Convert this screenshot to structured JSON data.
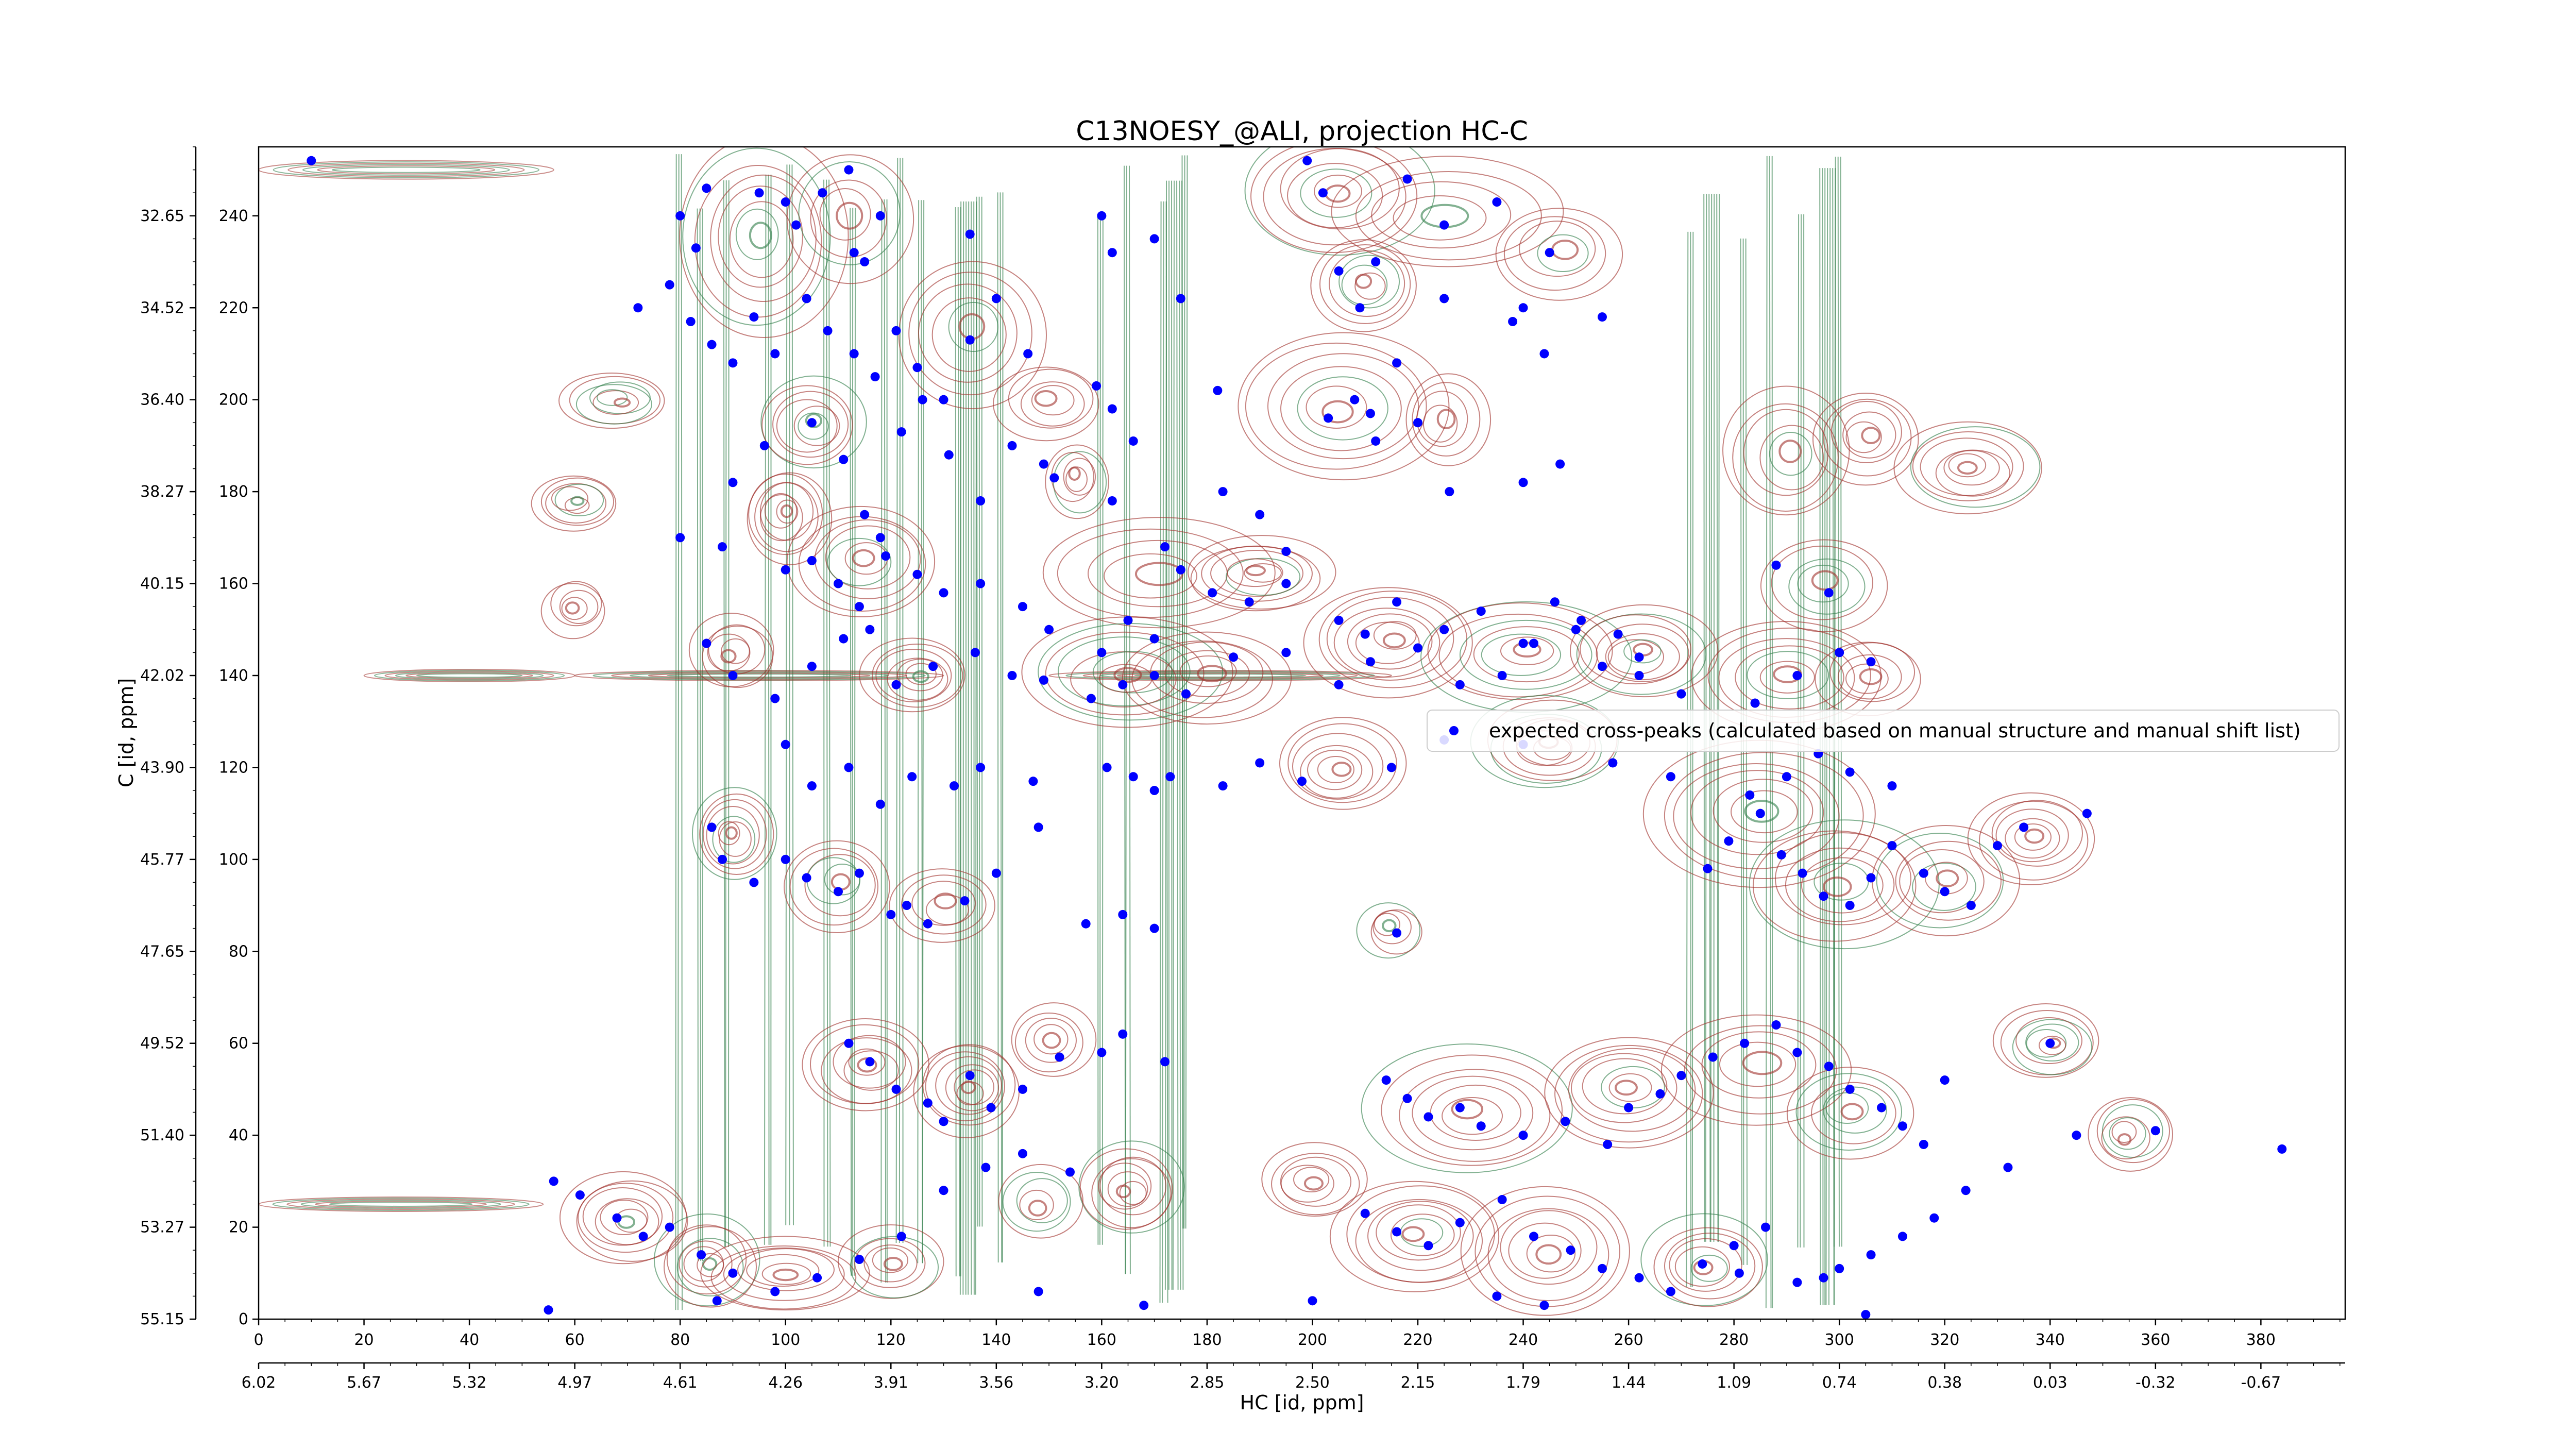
{
  "chart_data": {
    "type": "scatter",
    "title": "C13NOESY_@ALI, projection HC-C",
    "xlabel": "HC [id, ppm]",
    "ylabel": "C [id, ppm]",
    "xlim": [
      0,
      396
    ],
    "ylim": [
      0,
      255
    ],
    "x_ticks": [
      0,
      20,
      40,
      60,
      80,
      100,
      120,
      140,
      160,
      180,
      200,
      220,
      240,
      260,
      280,
      300,
      320,
      340,
      360,
      380
    ],
    "x_ppm_ticks": [
      "6.02",
      "5.67",
      "5.32",
      "4.97",
      "4.61",
      "4.26",
      "3.91",
      "3.56",
      "3.20",
      "2.85",
      "2.50",
      "2.15",
      "1.79",
      "1.44",
      "1.09",
      "0.74",
      "0.38",
      "0.03",
      "-0.32",
      "-0.67"
    ],
    "y_ticks": [
      0,
      20,
      40,
      60,
      80,
      100,
      120,
      140,
      160,
      180,
      200,
      220,
      240
    ],
    "y_ppm_ticks": [
      "55.15",
      "53.27",
      "51.40",
      "49.52",
      "47.65",
      "45.77",
      "43.90",
      "42.02",
      "40.15",
      "38.27",
      "36.40",
      "34.52",
      "32.65"
    ],
    "grid": false,
    "legend_position": "center-right",
    "series": [
      {
        "name": "expected cross-peaks (calculated based on manual structure and manual shift list)",
        "color": "#0000ff",
        "points": [
          [
            10,
            252
          ],
          [
            80,
            240
          ],
          [
            83,
            233
          ],
          [
            85,
            246
          ],
          [
            95,
            245
          ],
          [
            100,
            243
          ],
          [
            102,
            238
          ],
          [
            107,
            245
          ],
          [
            113,
            232
          ],
          [
            115,
            230
          ],
          [
            118,
            240
          ],
          [
            112,
            250
          ],
          [
            135,
            236
          ],
          [
            160,
            240
          ],
          [
            162,
            232
          ],
          [
            170,
            235
          ],
          [
            199,
            252
          ],
          [
            202,
            245
          ],
          [
            212,
            230
          ],
          [
            218,
            248
          ],
          [
            225,
            238
          ],
          [
            235,
            243
          ],
          [
            245,
            232
          ],
          [
            255,
            218
          ],
          [
            72,
            220
          ],
          [
            78,
            225
          ],
          [
            82,
            217
          ],
          [
            86,
            212
          ],
          [
            90,
            208
          ],
          [
            94,
            218
          ],
          [
            98,
            210
          ],
          [
            104,
            222
          ],
          [
            108,
            215
          ],
          [
            113,
            210
          ],
          [
            117,
            205
          ],
          [
            121,
            215
          ],
          [
            125,
            207
          ],
          [
            130,
            200
          ],
          [
            135,
            213
          ],
          [
            140,
            222
          ],
          [
            146,
            210
          ],
          [
            159,
            203
          ],
          [
            162,
            198
          ],
          [
            175,
            222
          ],
          [
            182,
            202
          ],
          [
            205,
            228
          ],
          [
            209,
            220
          ],
          [
            211,
            197
          ],
          [
            216,
            208
          ],
          [
            225,
            222
          ],
          [
            238,
            217
          ],
          [
            240,
            220
          ],
          [
            244,
            210
          ],
          [
            90,
            182
          ],
          [
            96,
            190
          ],
          [
            105,
            195
          ],
          [
            111,
            187
          ],
          [
            115,
            175
          ],
          [
            118,
            170
          ],
          [
            122,
            193
          ],
          [
            126,
            200
          ],
          [
            131,
            188
          ],
          [
            137,
            178
          ],
          [
            143,
            190
          ],
          [
            149,
            186
          ],
          [
            151,
            183
          ],
          [
            162,
            178
          ],
          [
            166,
            191
          ],
          [
            172,
            168
          ],
          [
            183,
            180
          ],
          [
            190,
            175
          ],
          [
            195,
            167
          ],
          [
            203,
            196
          ],
          [
            208,
            200
          ],
          [
            212,
            191
          ],
          [
            220,
            195
          ],
          [
            226,
            180
          ],
          [
            240,
            182
          ],
          [
            247,
            186
          ],
          [
            80,
            170
          ],
          [
            88,
            168
          ],
          [
            100,
            163
          ],
          [
            105,
            165
          ],
          [
            110,
            160
          ],
          [
            114,
            155
          ],
          [
            119,
            166
          ],
          [
            125,
            162
          ],
          [
            130,
            158
          ],
          [
            137,
            160
          ],
          [
            145,
            155
          ],
          [
            150,
            150
          ],
          [
            160,
            145
          ],
          [
            165,
            152
          ],
          [
            170,
            148
          ],
          [
            175,
            163
          ],
          [
            181,
            158
          ],
          [
            188,
            156
          ],
          [
            195,
            160
          ],
          [
            205,
            152
          ],
          [
            210,
            149
          ],
          [
            216,
            156
          ],
          [
            225,
            150
          ],
          [
            232,
            154
          ],
          [
            240,
            147
          ],
          [
            246,
            156
          ],
          [
            251,
            152
          ],
          [
            258,
            149
          ],
          [
            262,
            144
          ],
          [
            288,
            164
          ],
          [
            298,
            158
          ],
          [
            85,
            147
          ],
          [
            90,
            140
          ],
          [
            98,
            135
          ],
          [
            105,
            142
          ],
          [
            111,
            148
          ],
          [
            116,
            150
          ],
          [
            121,
            138
          ],
          [
            128,
            142
          ],
          [
            136,
            145
          ],
          [
            143,
            140
          ],
          [
            149,
            139
          ],
          [
            158,
            135
          ],
          [
            164,
            138
          ],
          [
            170,
            140
          ],
          [
            176,
            136
          ],
          [
            185,
            144
          ],
          [
            195,
            145
          ],
          [
            205,
            138
          ],
          [
            211,
            143
          ],
          [
            220,
            146
          ],
          [
            228,
            138
          ],
          [
            236,
            140
          ],
          [
            242,
            147
          ],
          [
            250,
            150
          ],
          [
            255,
            142
          ],
          [
            262,
            140
          ],
          [
            270,
            136
          ],
          [
            284,
            134
          ],
          [
            292,
            140
          ],
          [
            300,
            145
          ],
          [
            306,
            143
          ],
          [
            100,
            125
          ],
          [
            105,
            116
          ],
          [
            112,
            120
          ],
          [
            118,
            112
          ],
          [
            124,
            118
          ],
          [
            132,
            116
          ],
          [
            137,
            120
          ],
          [
            147,
            117
          ],
          [
            161,
            120
          ],
          [
            166,
            118
          ],
          [
            170,
            115
          ],
          [
            173,
            118
          ],
          [
            183,
            116
          ],
          [
            190,
            121
          ],
          [
            198,
            117
          ],
          [
            215,
            120
          ],
          [
            225,
            126
          ],
          [
            240,
            125
          ],
          [
            257,
            121
          ],
          [
            268,
            118
          ],
          [
            283,
            114
          ],
          [
            290,
            118
          ],
          [
            296,
            123
          ],
          [
            302,
            119
          ],
          [
            310,
            116
          ],
          [
            335,
            107
          ],
          [
            86,
            107
          ],
          [
            88,
            100
          ],
          [
            94,
            95
          ],
          [
            100,
            100
          ],
          [
            104,
            96
          ],
          [
            110,
            93
          ],
          [
            114,
            97
          ],
          [
            120,
            88
          ],
          [
            123,
            90
          ],
          [
            127,
            86
          ],
          [
            134,
            91
          ],
          [
            140,
            97
          ],
          [
            148,
            107
          ],
          [
            157,
            86
          ],
          [
            164,
            88
          ],
          [
            170,
            85
          ],
          [
            216,
            84
          ],
          [
            275,
            98
          ],
          [
            279,
            104
          ],
          [
            285,
            110
          ],
          [
            289,
            101
          ],
          [
            293,
            97
          ],
          [
            297,
            92
          ],
          [
            302,
            90
          ],
          [
            306,
            96
          ],
          [
            310,
            103
          ],
          [
            316,
            97
          ],
          [
            320,
            93
          ],
          [
            325,
            90
          ],
          [
            330,
            103
          ],
          [
            347,
            110
          ],
          [
            112,
            60
          ],
          [
            116,
            56
          ],
          [
            121,
            50
          ],
          [
            127,
            47
          ],
          [
            130,
            43
          ],
          [
            135,
            53
          ],
          [
            139,
            46
          ],
          [
            145,
            50
          ],
          [
            152,
            57
          ],
          [
            160,
            58
          ],
          [
            164,
            62
          ],
          [
            172,
            56
          ],
          [
            214,
            52
          ],
          [
            218,
            48
          ],
          [
            222,
            44
          ],
          [
            228,
            46
          ],
          [
            232,
            42
          ],
          [
            240,
            40
          ],
          [
            248,
            43
          ],
          [
            256,
            38
          ],
          [
            260,
            46
          ],
          [
            266,
            49
          ],
          [
            270,
            53
          ],
          [
            276,
            57
          ],
          [
            282,
            60
          ],
          [
            288,
            64
          ],
          [
            292,
            58
          ],
          [
            298,
            55
          ],
          [
            302,
            50
          ],
          [
            308,
            46
          ],
          [
            312,
            42
          ],
          [
            316,
            38
          ],
          [
            320,
            52
          ],
          [
            340,
            60
          ],
          [
            360,
            41
          ],
          [
            384,
            37
          ],
          [
            56,
            30
          ],
          [
            61,
            27
          ],
          [
            68,
            22
          ],
          [
            73,
            18
          ],
          [
            78,
            20
          ],
          [
            84,
            14
          ],
          [
            90,
            10
          ],
          [
            98,
            6
          ],
          [
            106,
            9
          ],
          [
            114,
            13
          ],
          [
            122,
            18
          ],
          [
            130,
            28
          ],
          [
            138,
            33
          ],
          [
            145,
            36
          ],
          [
            154,
            32
          ],
          [
            210,
            23
          ],
          [
            216,
            19
          ],
          [
            222,
            16
          ],
          [
            228,
            21
          ],
          [
            236,
            26
          ],
          [
            242,
            18
          ],
          [
            249,
            15
          ],
          [
            255,
            11
          ],
          [
            262,
            9
          ],
          [
            268,
            6
          ],
          [
            274,
            12
          ],
          [
            280,
            16
          ],
          [
            286,
            20
          ],
          [
            292,
            8
          ],
          [
            300,
            11
          ],
          [
            306,
            14
          ],
          [
            312,
            18
          ],
          [
            318,
            22
          ],
          [
            324,
            28
          ],
          [
            332,
            33
          ],
          [
            345,
            40
          ],
          [
            55,
            2
          ],
          [
            87,
            4
          ],
          [
            148,
            6
          ],
          [
            168,
            3
          ],
          [
            200,
            4
          ],
          [
            235,
            5
          ],
          [
            244,
            3
          ],
          [
            281,
            10
          ],
          [
            297,
            9
          ],
          [
            305,
            1
          ]
        ]
      }
    ]
  },
  "legend": {
    "label": "expected cross-peaks (calculated based on manual structure and manual shift list)"
  }
}
